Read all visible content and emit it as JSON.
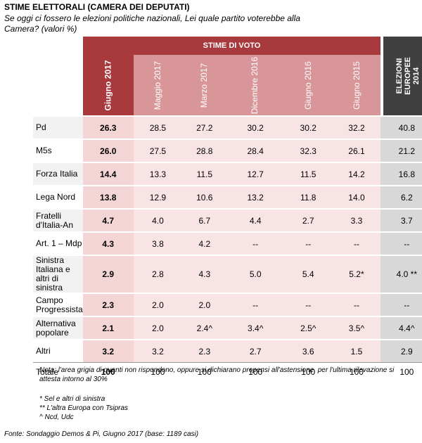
{
  "title": "STIME ELETTORALI (CAMERA DEI DEPUTATI)",
  "subtitle": "Se oggi ci fossero le elezioni politiche nazionali, Lei quale partito voterebbe alla Camera? (valori %)",
  "chart_data": {
    "type": "table",
    "group_header": "STIME DI VOTO",
    "columns": [
      "Giugno 2017",
      "Maggio 2017",
      "Marzo 2017",
      "Dicembre 2016",
      "Giugno 2016",
      "Giugno 2015",
      "ELEZIONI EUROPEE 2014"
    ],
    "rows": [
      {
        "label": "Pd",
        "values": [
          "26.3",
          "28.5",
          "27.2",
          "30.2",
          "30.2",
          "32.2",
          "40.8"
        ]
      },
      {
        "label": "M5s",
        "values": [
          "26.0",
          "27.5",
          "28.8",
          "28.4",
          "32.3",
          "26.1",
          "21.2"
        ]
      },
      {
        "label": "Forza Italia",
        "values": [
          "14.4",
          "13.3",
          "11.5",
          "12.7",
          "11.5",
          "14.2",
          "16.8"
        ]
      },
      {
        "label": "Lega Nord",
        "values": [
          "13.8",
          "12.9",
          "10.6",
          "13.2",
          "11.8",
          "14.0",
          "6.2"
        ]
      },
      {
        "label": "Fratelli d'Italia-An",
        "values": [
          "4.7",
          "4.0",
          "6.7",
          "4.4",
          "2.7",
          "3.3",
          "3.7"
        ]
      },
      {
        "label": "Art. 1 – Mdp",
        "values": [
          "4.3",
          "3.8",
          "4.2",
          "--",
          "--",
          "--",
          "--"
        ]
      },
      {
        "label": "Sinistra Italiana e altri di sinistra",
        "values": [
          "2.9",
          "2.8",
          "4.3",
          "5.0",
          "5.4",
          "5.2*",
          "4.0 **"
        ]
      },
      {
        "label": "Campo Progressista",
        "values": [
          "2.3",
          "2.0",
          "2.0",
          "--",
          "--",
          "--",
          "--"
        ]
      },
      {
        "label": "Alternativa popolare",
        "values": [
          "2.1",
          "2.0",
          "2.4^",
          "3.4^",
          "2.5^",
          "3.5^",
          "4.4^"
        ]
      },
      {
        "label": "Altri",
        "values": [
          "3.2",
          "3.2",
          "2.3",
          "2.7",
          "3.6",
          "1.5",
          "2.9"
        ]
      }
    ],
    "total": {
      "label": "Totale",
      "values": [
        "100",
        "100",
        "100",
        "100",
        "100",
        "100",
        "100"
      ]
    }
  },
  "notes": "Nota: l'area grigia di quanti non rispondono, oppure si dichiarano propensi all'astensione, per l'ultima rilevazione si attesta intorno al 30%",
  "footnotes": [
    "* Sel e altri di sinistra",
    "** L'altra Europa con Tsipras",
    "^ Ncd, Udc"
  ],
  "source": "Fonte: Sondaggio Demos & Pi, Giugno 2017 (base: 1189 casi)",
  "colors": {
    "accent": "#a83a3e",
    "accent_light": "#d99699",
    "euro": "#404040"
  }
}
